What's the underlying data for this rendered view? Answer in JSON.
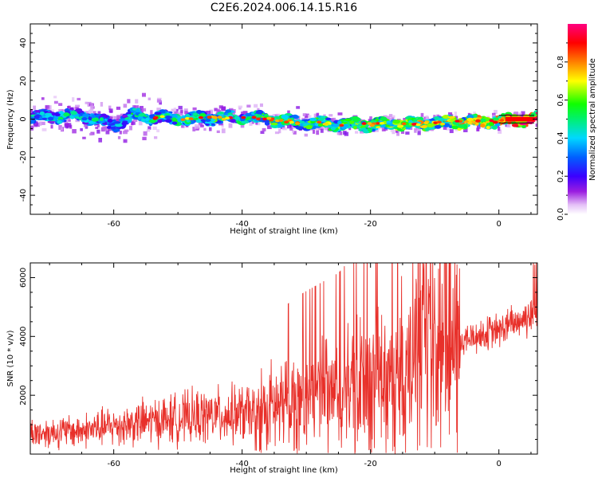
{
  "title": "C2E6.2024.006.14.15.R16",
  "chart_data": [
    {
      "type": "heatmap",
      "xlabel": "Height of straight line (km)",
      "ylabel": "Frequency (Hz)",
      "xlim": [
        -73,
        6
      ],
      "ylim": [
        -50,
        50
      ],
      "x_ticks": [
        -60,
        -40,
        -20,
        0
      ],
      "y_ticks": [
        -40,
        -20,
        0,
        20,
        40
      ],
      "y_tick_labels": [
        "-40",
        "-20",
        "0",
        "20",
        "40"
      ],
      "colorbar": {
        "label": "Normalized spectral amplitude",
        "range": [
          0,
          1
        ],
        "ticks": [
          0.0,
          0.2,
          0.4,
          0.6,
          0.8
        ],
        "tick_labels": [
          "0.0",
          "0.2",
          "0.4",
          "0.6",
          "0.8"
        ],
        "colormap": "rainbow (white-purple-blue-cyan-green-yellow-red-magenta)"
      },
      "ridge": {
        "x": [
          -73,
          -65,
          -60,
          -57,
          -50,
          -40,
          -30,
          -20,
          -10,
          0,
          5.5
        ],
        "freq_center": [
          1,
          2,
          -3,
          2,
          0,
          1,
          -2,
          -3,
          -2,
          -1,
          0
        ],
        "intensity": [
          0.4,
          0.45,
          0.35,
          0.45,
          0.5,
          0.5,
          0.55,
          0.6,
          0.65,
          0.75,
          0.95
        ]
      }
    },
    {
      "type": "line",
      "xlabel": "Height of straight line (km)",
      "ylabel": "SNR (10 * v/v)",
      "xlim": [
        -73,
        6
      ],
      "ylim": [
        0,
        6500
      ],
      "x_ticks": [
        -60,
        -40,
        -20,
        0
      ],
      "y_ticks": [
        2000,
        4000,
        6000
      ],
      "series": [
        {
          "color": "#e8302a",
          "trend_x": [
            -73,
            -65,
            -55,
            -45,
            -38,
            -30,
            -25,
            -20,
            -15,
            -10,
            -5,
            0,
            5.5
          ],
          "trend_y": [
            700,
            800,
            1100,
            1300,
            1400,
            1800,
            2000,
            2400,
            2900,
            3300,
            3900,
            4200,
            4800
          ]
        }
      ]
    }
  ]
}
